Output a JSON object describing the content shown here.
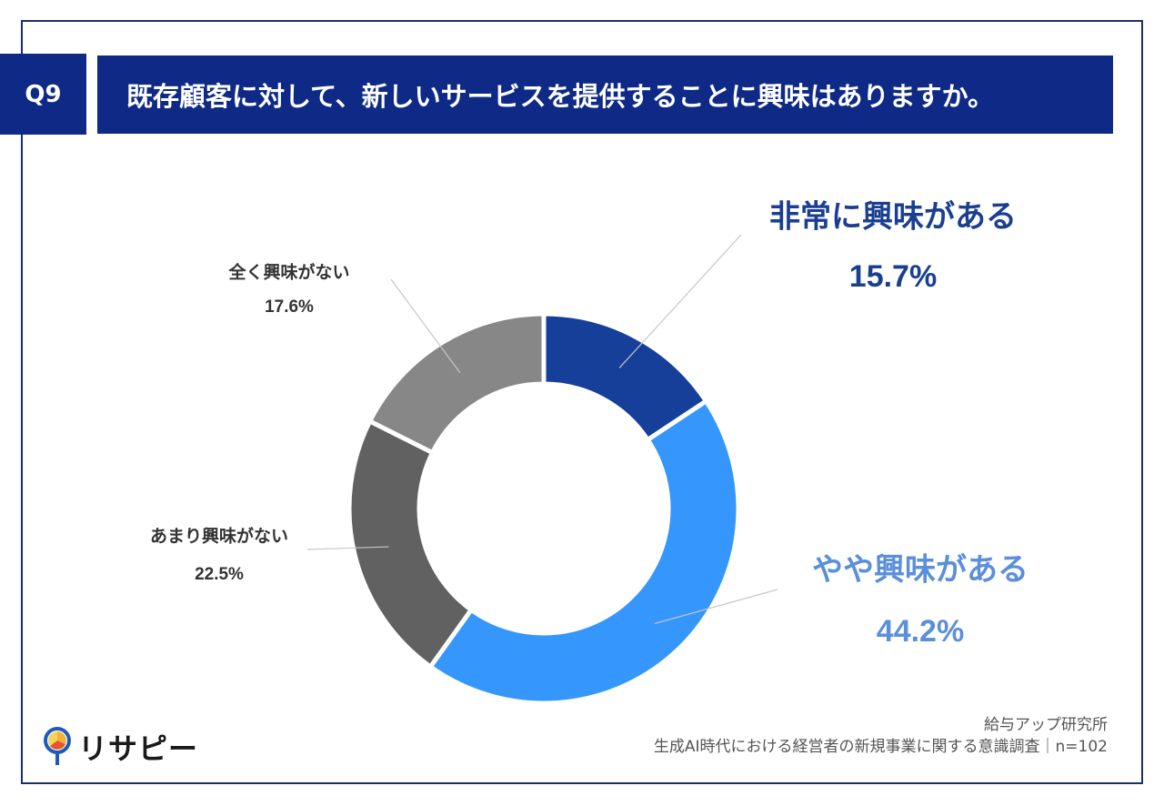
{
  "header": {
    "question_no": "Q9",
    "question": "既存顧客に対して、新しいサービスを提供することに興味はありますか。"
  },
  "chart_data": {
    "type": "pie",
    "donut": true,
    "categories": [
      "非常に興味がある",
      "やや興味がある",
      "あまり興味がない",
      "全く興味がない"
    ],
    "values": [
      15.7,
      44.2,
      22.5,
      17.6
    ],
    "value_labels": [
      "15.7%",
      "44.2%",
      "22.5%",
      "17.6%"
    ],
    "colors": [
      "#163f9a",
      "#3596fb",
      "#616161",
      "#878787"
    ],
    "label_colors": [
      "#1a3f91",
      "#5b8fdb",
      "#333333",
      "#333333"
    ],
    "start_angle_deg": 0,
    "direction": "clockwise"
  },
  "footer": {
    "logo_text": "リサピー",
    "source_org": "給与アップ研究所",
    "source_survey": "生成AI時代における経営者の新規事業に関する意識調査｜n=102"
  }
}
